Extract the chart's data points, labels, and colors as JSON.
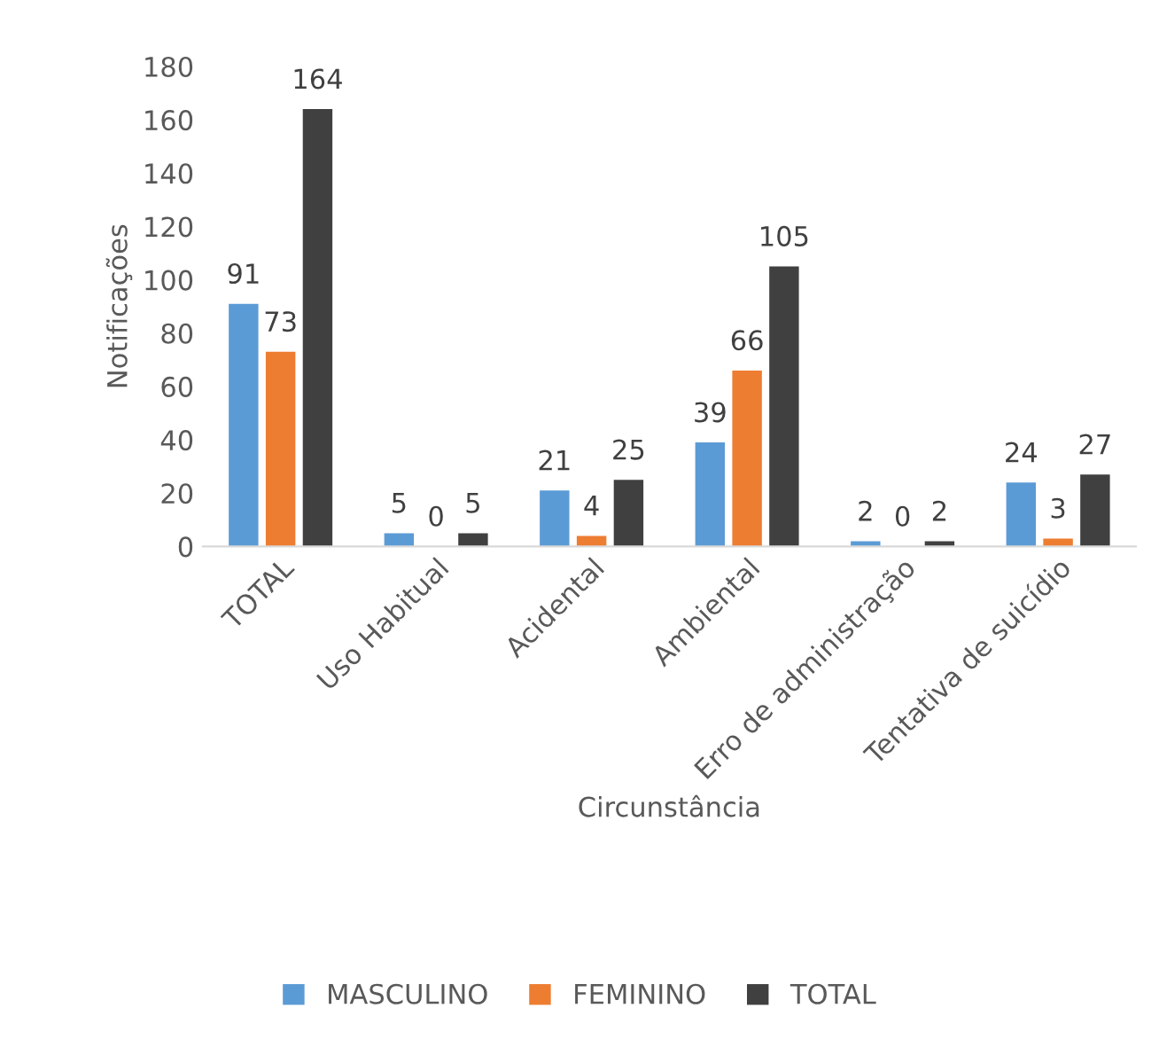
{
  "chart_data": {
    "type": "bar",
    "categories": [
      "TOTAL",
      "Uso Habitual",
      "Acidental",
      "Ambiental",
      "Erro de administração",
      "Tentativa de suicídio"
    ],
    "series": [
      {
        "name": "MASCULINO",
        "color": "#5b9bd5",
        "values": [
          91,
          5,
          21,
          39,
          2,
          24
        ]
      },
      {
        "name": "FEMININO",
        "color": "#ed7d31",
        "values": [
          73,
          0,
          4,
          66,
          0,
          3
        ]
      },
      {
        "name": "TOTAL",
        "color": "#404040",
        "values": [
          164,
          5,
          25,
          105,
          2,
          27
        ]
      }
    ],
    "xlabel": "Circunstância",
    "ylabel": "Notificações",
    "ylim": [
      0,
      180
    ],
    "yticks": [
      0,
      20,
      40,
      60,
      80,
      100,
      120,
      140,
      160,
      180
    ],
    "data_labels": true,
    "grid": false,
    "legend": "bottom"
  }
}
